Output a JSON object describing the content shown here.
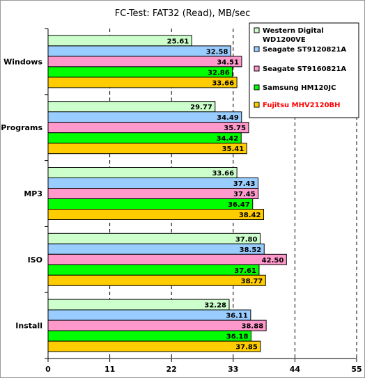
{
  "chart_data": {
    "type": "bar",
    "orientation": "horizontal",
    "title": "FC-Test: FAT32 (Read), MB/sec",
    "xlim": [
      0,
      55
    ],
    "xticks": [
      "0",
      "11",
      "22",
      "33",
      "44",
      "55"
    ],
    "gridlines": "vertical dashed",
    "legend_position": "top-right",
    "categories": [
      "Windows",
      "Programs",
      "MP3",
      "ISO",
      "Install"
    ],
    "series": [
      {
        "name": "Western Digital WD1200VE",
        "legend_lines": [
          "Western Digital",
          "WD1200VE"
        ],
        "color": "#ccffcc",
        "values": [
          25.61,
          29.77,
          33.66,
          37.8,
          32.28
        ],
        "labels": [
          "25.61",
          "29.77",
          "33.66",
          "37.80",
          "32.28"
        ]
      },
      {
        "name": "Seagate ST9120821A",
        "legend_lines": [
          "Seagate ST9120821A"
        ],
        "color": "#99ccff",
        "values": [
          32.58,
          34.49,
          37.43,
          38.52,
          36.11
        ],
        "labels": [
          "32.58",
          "34.49",
          "37.43",
          "38.52",
          "36.11"
        ]
      },
      {
        "name": "Seagate ST9160821A",
        "legend_lines": [
          "Seagate ST9160821A"
        ],
        "color": "#ff99cc",
        "values": [
          34.51,
          35.75,
          37.45,
          42.5,
          38.88
        ],
        "labels": [
          "34.51",
          "35.75",
          "37.45",
          "42.50",
          "38.88"
        ]
      },
      {
        "name": "Samsung HM120JC",
        "legend_lines": [
          "Samsung HM120JC"
        ],
        "color": "#00ff00",
        "values": [
          32.86,
          34.42,
          36.47,
          37.61,
          36.18
        ],
        "labels": [
          "32.86",
          "34.42",
          "36.47",
          "37.61",
          "36.18"
        ]
      },
      {
        "name": "Fujitsu MHV2120BH",
        "legend_lines": [
          "Fujitsu MHV2120BH"
        ],
        "color": "#ffcc00",
        "text_color": "#ff0000",
        "values": [
          33.66,
          35.41,
          38.42,
          38.77,
          37.85
        ],
        "labels": [
          "33.66",
          "35.41",
          "38.42",
          "38.77",
          "37.85"
        ]
      }
    ]
  }
}
